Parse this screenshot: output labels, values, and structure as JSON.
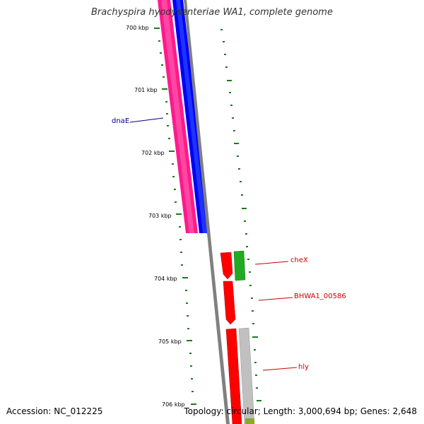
{
  "title": "Brachyspira hyodysenteriae WA1, complete genome",
  "footer": {
    "accession": "Accession: NC_012225",
    "summary": "Topology: circular; Length: 3,000,694 bp; Genes: 2,648"
  },
  "ruler_labels": [
    "700 kbp",
    "701 kbp",
    "702 kbp",
    "703 kbp",
    "704 kbp",
    "705 kbp",
    "706 kbp"
  ],
  "genes": [
    {
      "name": "dnaE",
      "color": "#000080"
    },
    {
      "name": "cheX",
      "color": "#cc0000"
    },
    {
      "name": "BHWA1_00586",
      "color": "#cc0000"
    },
    {
      "name": "hly",
      "color": "#cc0000"
    }
  ],
  "colors": {
    "ruler": "#1a7a1a",
    "feature_pink": "#ff1a8c",
    "feature_blue": "#0000ff",
    "backbone": "#808080",
    "cds_red": "#ff0000",
    "cds_green": "#22aa22",
    "cds_grey": "#c0c0c0",
    "cds_olive": "#8aaa22"
  }
}
